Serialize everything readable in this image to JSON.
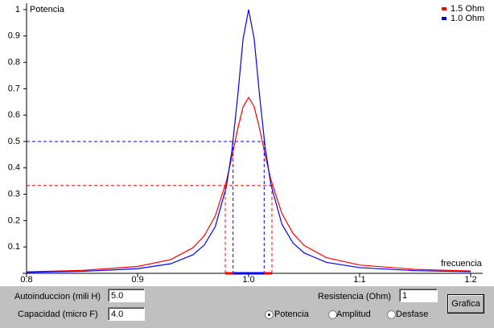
{
  "chart_data": {
    "type": "line",
    "y_label": "Potencia",
    "x_label": "frecuencia",
    "xlim": [
      0.8,
      1.2
    ],
    "xticks": [
      0.8,
      0.9,
      {
        "value": 1,
        "label": "1.0"
      },
      1.1,
      1.2
    ],
    "ylim": [
      0,
      1
    ],
    "yticks": [
      0.1,
      0.2,
      0.3,
      0.4,
      0.5,
      0.6,
      0.7,
      0.8,
      0.9,
      1
    ],
    "legend": "top-right",
    "x": [
      0.8,
      0.85,
      0.9,
      0.93,
      0.95,
      0.96,
      0.97,
      0.98,
      0.985,
      0.99,
      0.995,
      1.0,
      1.005,
      1.01,
      1.015,
      1.02,
      1.03,
      1.04,
      1.05,
      1.07,
      1.1,
      1.15,
      1.2
    ],
    "series": [
      {
        "name": "1.5 Ohm",
        "color": "#ff0000",
        "values": [
          0.0059,
          0.0111,
          0.0259,
          0.0524,
          0.0973,
          0.142,
          0.218,
          0.35,
          0.442,
          0.544,
          0.631,
          0.667,
          0.632,
          0.546,
          0.447,
          0.356,
          0.227,
          0.151,
          0.106,
          0.0596,
          0.0314,
          0.0149,
          0.0088
        ],
        "half_power": {
          "level": 0.333,
          "x": [
            0.979,
            1.021
          ]
        }
      },
      {
        "name": "1.0 Ohm",
        "color": "#0000ff",
        "values": [
          0.0039,
          0.0074,
          0.0176,
          0.0365,
          0.0706,
          0.107,
          0.177,
          0.329,
          0.467,
          0.664,
          0.888,
          1.0,
          0.889,
          0.669,
          0.474,
          0.338,
          0.186,
          0.115,
          0.0774,
          0.0418,
          0.0215,
          0.0101,
          0.0059
        ],
        "half_power": {
          "level": 0.5,
          "x": [
            0.986,
            1.014
          ]
        }
      }
    ]
  },
  "controls": {
    "inductance": {
      "label": "Autoinduccion (mili H)",
      "value": "5.0"
    },
    "capacitance": {
      "label": "Capacidad (micro F)",
      "value": "4.0"
    },
    "resistance": {
      "label": "Resistencia (Ohm)",
      "value": "1"
    },
    "radios": [
      "Potencia",
      "Amplitud",
      "Desfase"
    ],
    "selected": 0,
    "button": "Grafica"
  }
}
